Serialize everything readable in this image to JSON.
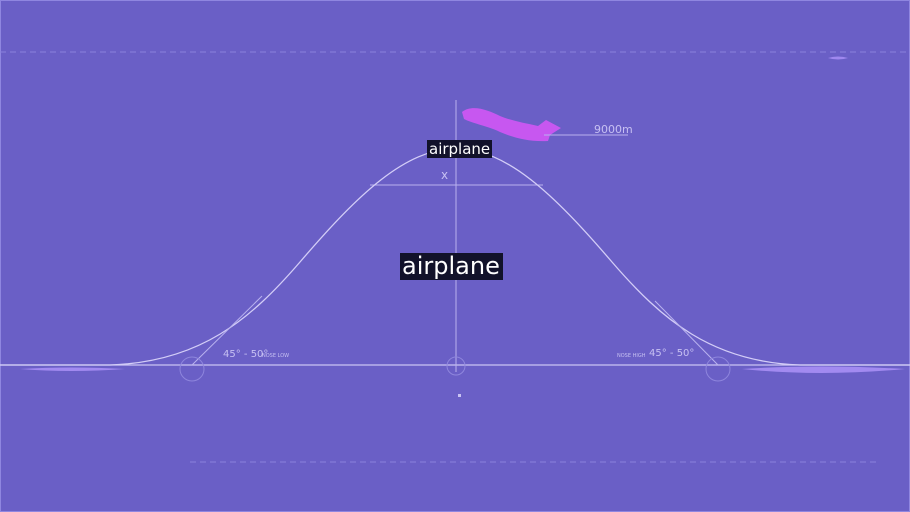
{
  "labels": {
    "top": "airplane",
    "center": "airplane"
  },
  "diagram": {
    "altitude": "9000m",
    "axis_marker": "x",
    "angle_left": "45° - 50°",
    "angle_left_caption": "NOSE LOW",
    "angle_right": "45° - 50°",
    "angle_right_caption": "NOSE HIGH"
  },
  "colors": {
    "background": "#6a5fc6",
    "line": "#c9c3f3",
    "airplane": "#c757f0",
    "label_bg": "#12122a",
    "label_text": "#ffffff"
  }
}
